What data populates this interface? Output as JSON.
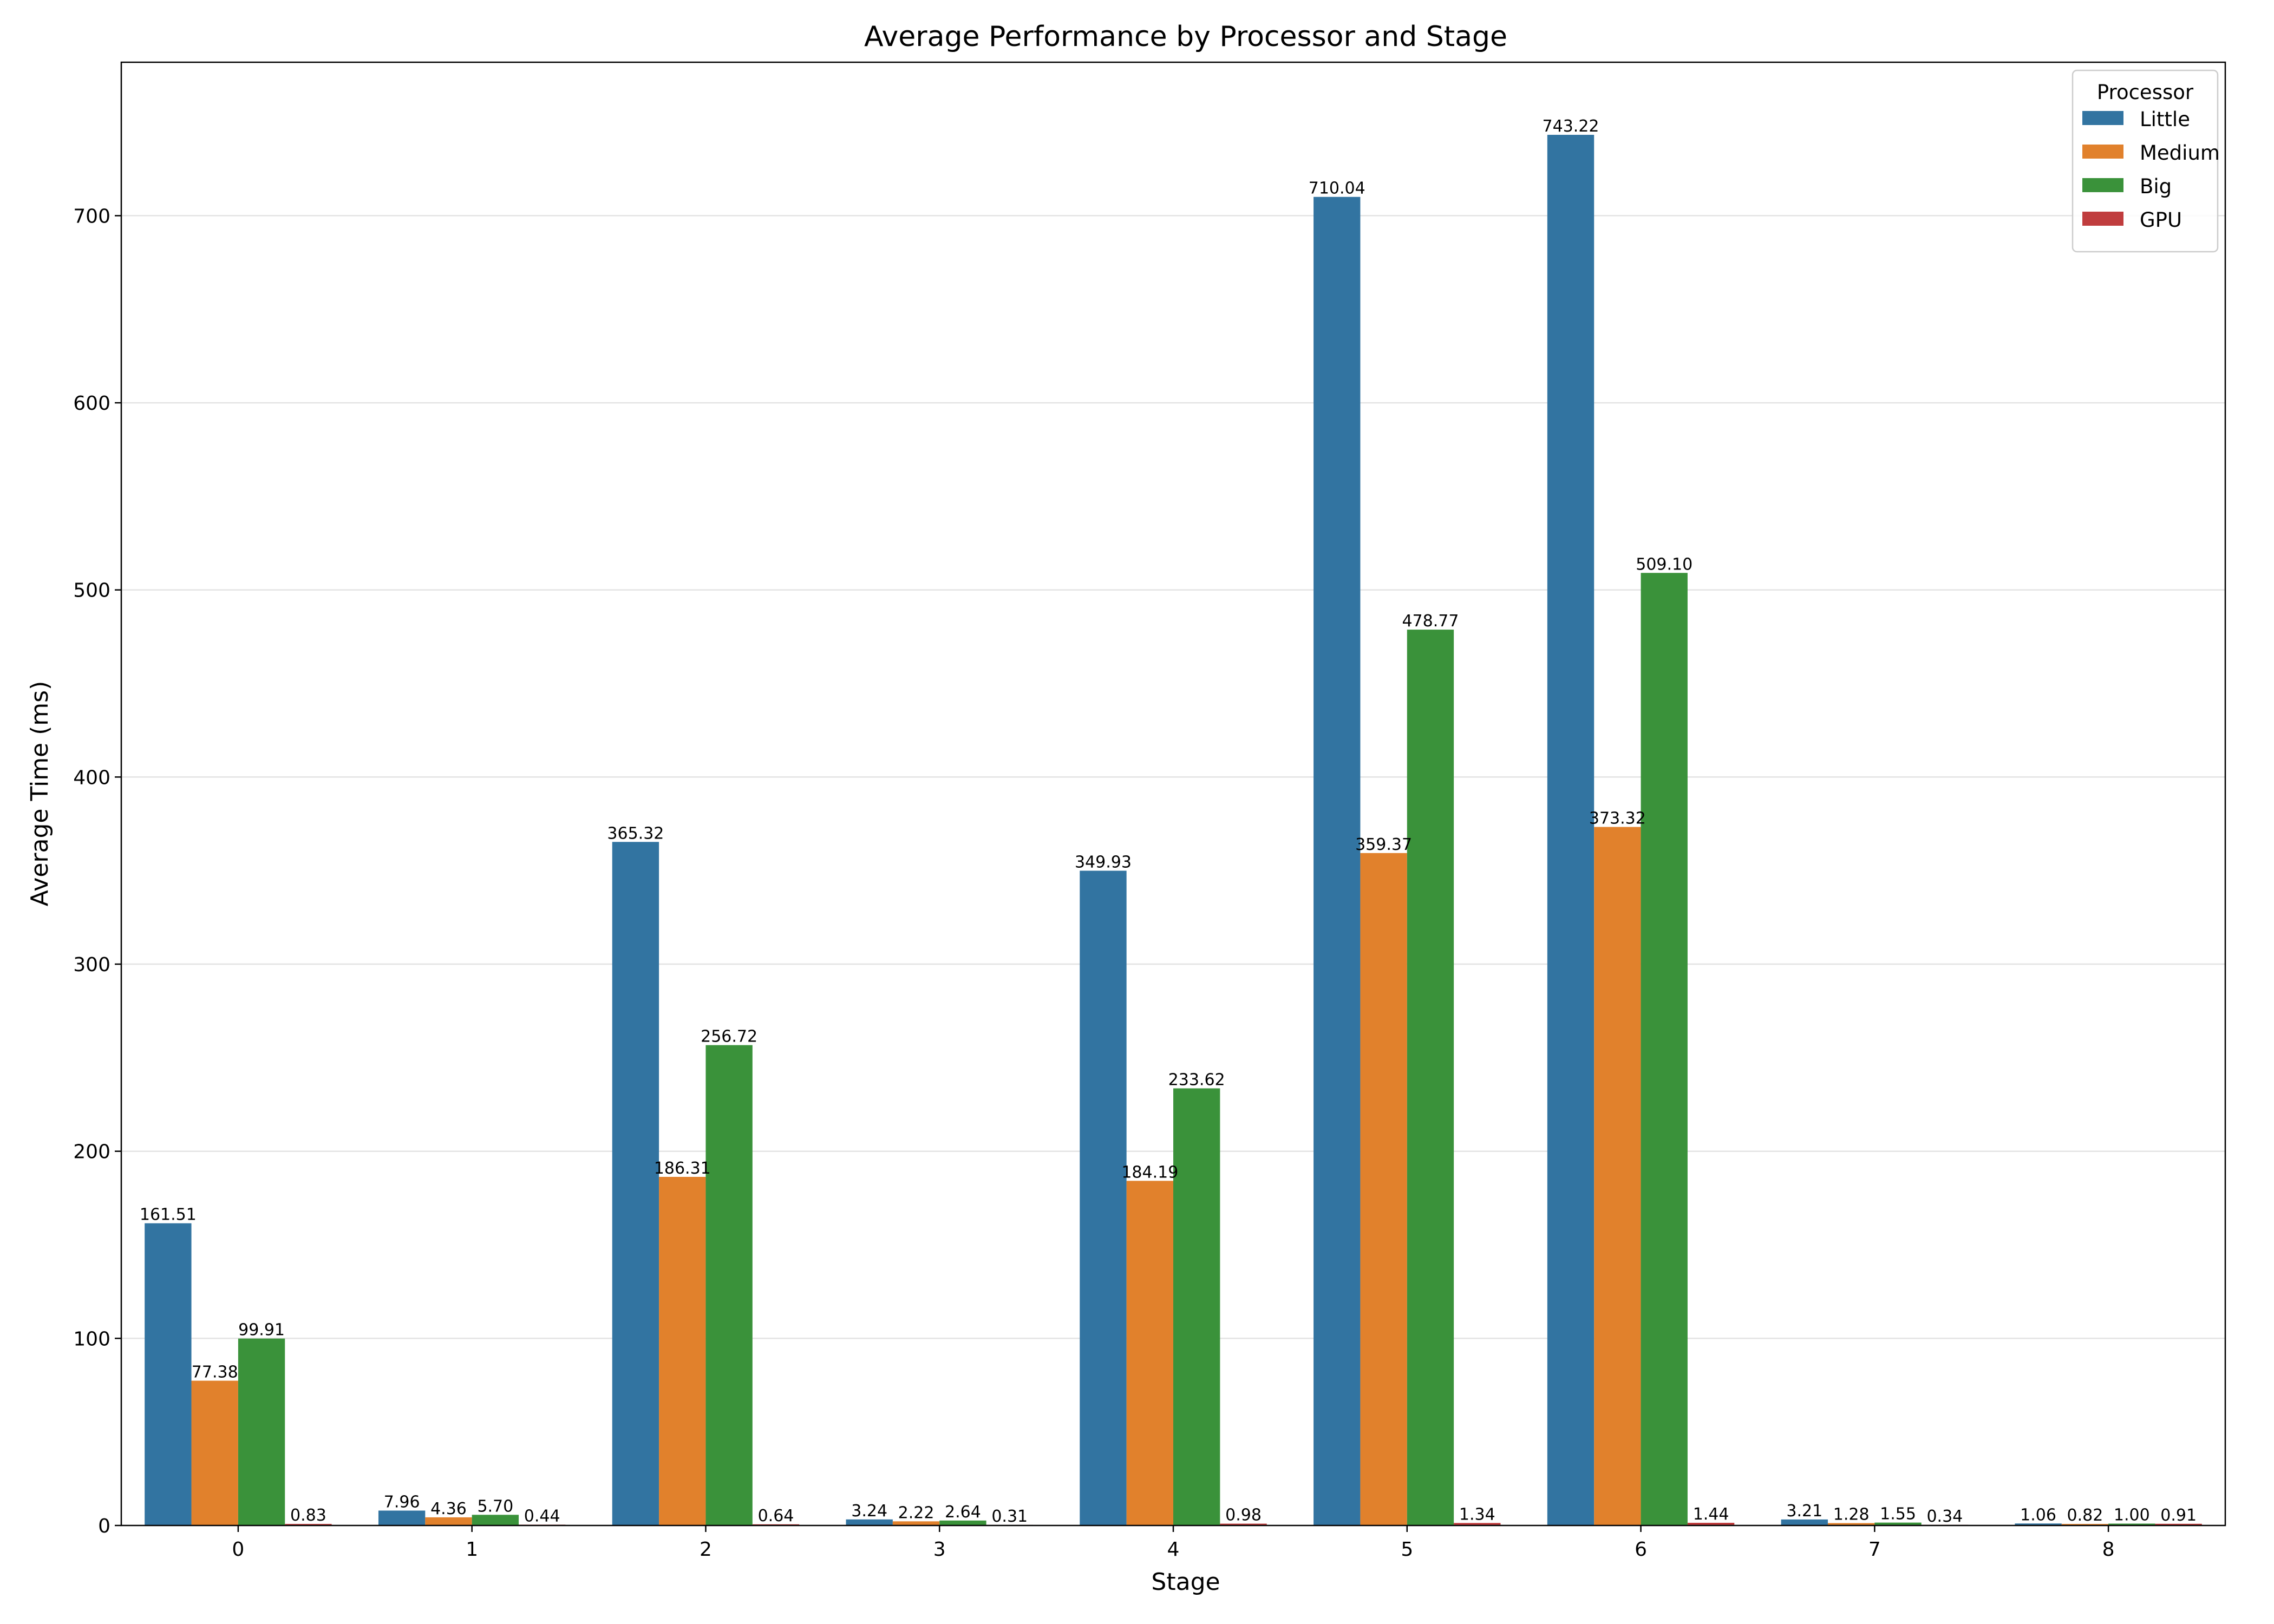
{
  "chart_data": {
    "type": "bar",
    "title": "Average Performance by Processor and Stage",
    "xlabel": "Stage",
    "ylabel": "Average Time (ms)",
    "categories": [
      "0",
      "1",
      "2",
      "3",
      "4",
      "5",
      "6",
      "7",
      "8"
    ],
    "ylim": [
      0,
      782
    ],
    "yticks": [
      0,
      100,
      200,
      300,
      400,
      500,
      600,
      700
    ],
    "grid": "horizontal",
    "legend": {
      "title": "Processor",
      "placement": "top-right"
    },
    "series": [
      {
        "name": "Little",
        "color": "#3274a1",
        "values": [
          161.51,
          7.96,
          365.32,
          3.24,
          349.93,
          710.04,
          743.22,
          3.21,
          1.06
        ],
        "labels": [
          "161.51",
          "7.96",
          "365.32",
          "3.24",
          "349.93",
          "710.04",
          "743.22",
          "3.21",
          "1.06"
        ]
      },
      {
        "name": "Medium",
        "color": "#e1812c",
        "values": [
          77.38,
          4.36,
          186.31,
          2.22,
          184.19,
          359.37,
          373.32,
          1.28,
          0.82
        ],
        "labels": [
          "77.38",
          "4.36",
          "186.31",
          "2.22",
          "184.19",
          "359.37",
          "373.32",
          "1.28",
          "0.82"
        ]
      },
      {
        "name": "Big",
        "color": "#3a923a",
        "values": [
          99.91,
          5.7,
          256.72,
          2.64,
          233.62,
          478.77,
          509.1,
          1.55,
          1.0
        ],
        "labels": [
          "99.91",
          "5.70",
          "256.72",
          "2.64",
          "233.62",
          "478.77",
          "509.10",
          "1.55",
          "1.00"
        ]
      },
      {
        "name": "GPU",
        "color": "#c03d3e",
        "values": [
          0.83,
          0.44,
          0.64,
          0.31,
          0.98,
          1.34,
          1.44,
          0.34,
          0.91
        ],
        "labels": [
          "0.83",
          "0.44",
          "0.64",
          "0.31",
          "0.98",
          "1.34",
          "1.44",
          "0.34",
          "0.91"
        ]
      }
    ]
  }
}
